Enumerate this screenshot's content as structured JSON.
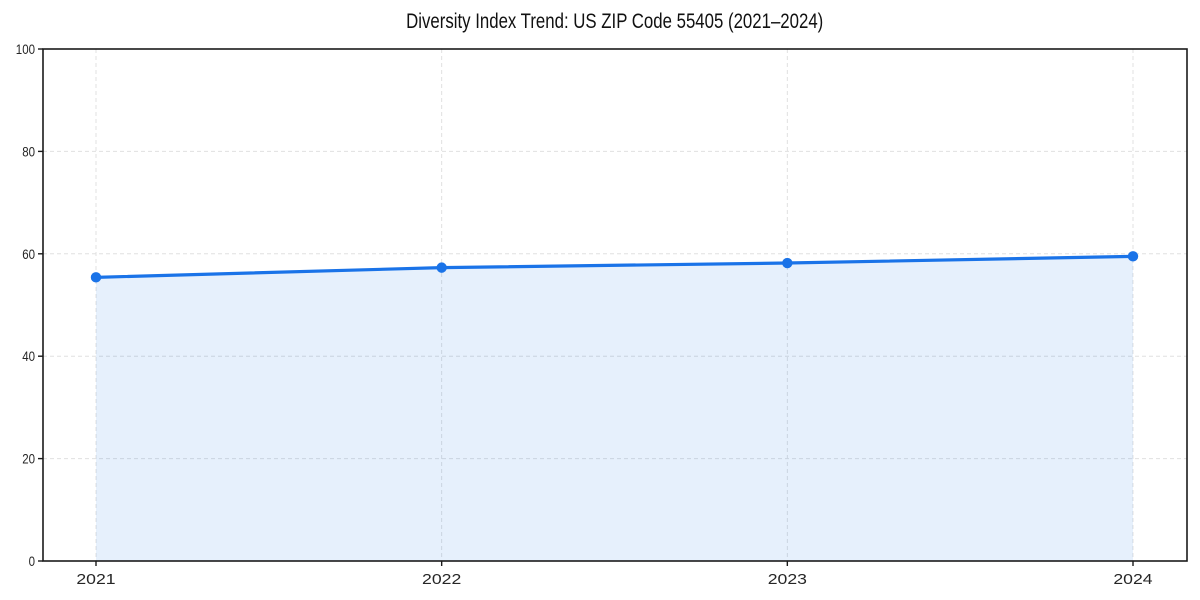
{
  "figure": {
    "background": "#ffffff"
  },
  "chart_data": {
    "type": "area",
    "title": "Diversity Index Trend: US ZIP Code 55405 (2021–2024)",
    "categories": [
      "2021",
      "2022",
      "2023",
      "2024"
    ],
    "series": [
      {
        "name": "Diversity Index",
        "values": [
          55.4,
          57.3,
          58.2,
          59.5
        ]
      }
    ],
    "xlabel": "",
    "ylabel": "",
    "ylim": [
      0,
      100
    ],
    "yticks": [
      0,
      20,
      40,
      60,
      80,
      100
    ],
    "grid": "dashed both axes",
    "legend": "none",
    "marker": "circle",
    "colors": {
      "line": "#1a73e8",
      "marker": "#1a73e8",
      "fill": "rgba(26,115,232,0.11)",
      "grid": "#e0e0e0",
      "axis": "#1a1a1a",
      "tick_label": "#262626",
      "title": "#111111",
      "background": "#ffffff"
    }
  }
}
